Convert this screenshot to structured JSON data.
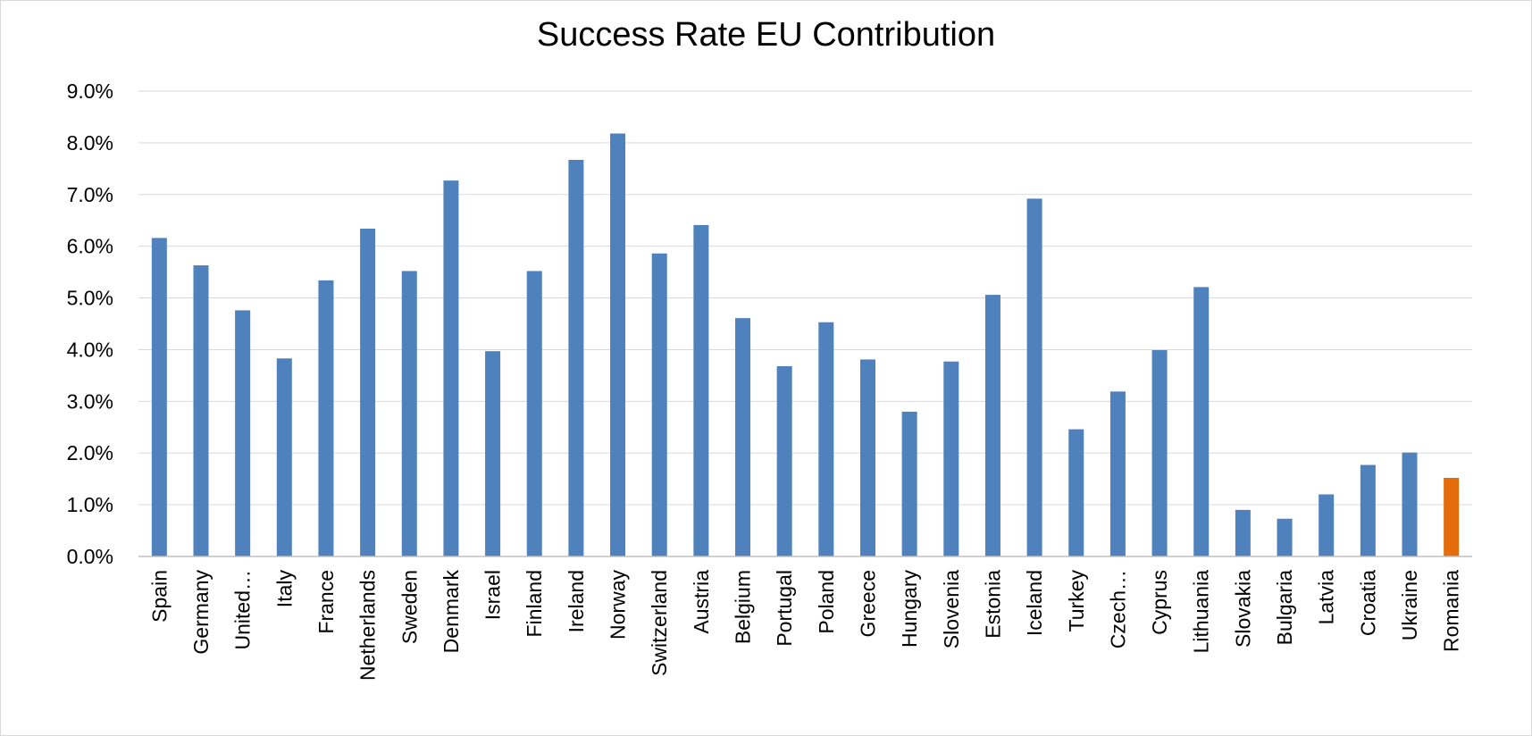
{
  "chart_data": {
    "type": "bar",
    "title": "Success Rate EU Contribution",
    "xlabel": "",
    "ylabel": "",
    "ylim": [
      0,
      0.09
    ],
    "y_ticks": [
      "0.0%",
      "1.0%",
      "2.0%",
      "3.0%",
      "4.0%",
      "5.0%",
      "6.0%",
      "7.0%",
      "8.0%",
      "9.0%"
    ],
    "grid": true,
    "legend": "none",
    "categories": [
      "Spain",
      "Germany",
      "United…",
      "Italy",
      "France",
      "Netherlands",
      "Sweden",
      "Denmark",
      "Israel",
      "Finland",
      "Ireland",
      "Norway",
      "Switzerland",
      "Austria",
      "Belgium",
      "Portugal",
      "Poland",
      "Greece",
      "Hungary",
      "Slovenia",
      "Estonia",
      "Iceland",
      "Turkey",
      "Czech…",
      "Cyprus",
      "Lithuania",
      "Slovakia",
      "Bulgaria",
      "Latvia",
      "Croatia",
      "Ukraine",
      "Romania"
    ],
    "values": [
      0.0616,
      0.0563,
      0.0476,
      0.0383,
      0.0534,
      0.0634,
      0.0552,
      0.0727,
      0.0397,
      0.0552,
      0.0767,
      0.0818,
      0.0586,
      0.0641,
      0.0461,
      0.0368,
      0.0453,
      0.0381,
      0.028,
      0.0377,
      0.0506,
      0.0692,
      0.0246,
      0.0319,
      0.0399,
      0.0521,
      0.009,
      0.0073,
      0.012,
      0.0177,
      0.0201,
      0.0152
    ],
    "colors": {
      "bar": "#4f81bd",
      "highlight": "#e46c0a",
      "grid": "#d9d9d9",
      "axis": "#bfbfbf"
    },
    "highlight_category": "Romania"
  }
}
